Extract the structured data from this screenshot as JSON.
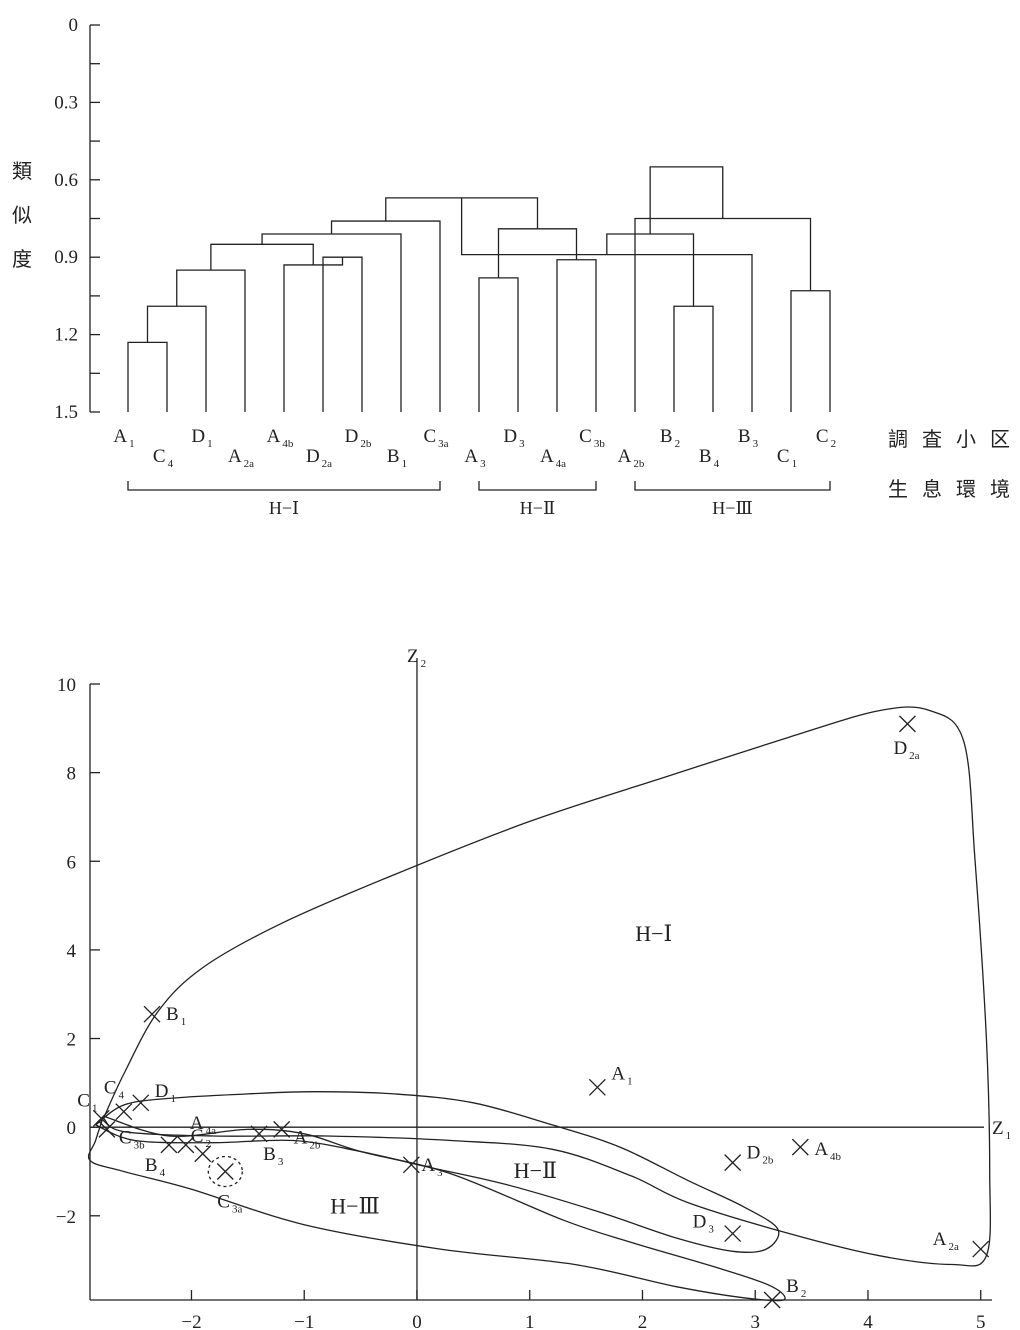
{
  "chart_data": [
    {
      "type": "dendrogram",
      "ylabel": "類似度",
      "xlabel": "調査小区",
      "group_label": "生息環境",
      "ylim": [
        0,
        1.5
      ],
      "yticks": [
        "0",
        "0.3",
        "0.6",
        "0.9",
        "1.2",
        "1.5"
      ],
      "leaves": [
        {
          "base": "A",
          "sub": "1"
        },
        {
          "base": "C",
          "sub": "4"
        },
        {
          "base": "D",
          "sub": "1"
        },
        {
          "base": "A",
          "sub": "2a"
        },
        {
          "base": "A",
          "sub": "4b"
        },
        {
          "base": "D",
          "sub": "2a"
        },
        {
          "base": "D",
          "sub": "2b"
        },
        {
          "base": "B",
          "sub": "1"
        },
        {
          "base": "C",
          "sub": "3a"
        },
        {
          "base": "A",
          "sub": "3"
        },
        {
          "base": "D",
          "sub": "3"
        },
        {
          "base": "A",
          "sub": "4a"
        },
        {
          "base": "C",
          "sub": "3b"
        },
        {
          "base": "A",
          "sub": "2b"
        },
        {
          "base": "B",
          "sub": "2"
        },
        {
          "base": "B",
          "sub": "4"
        },
        {
          "base": "B",
          "sub": "3"
        },
        {
          "base": "C",
          "sub": "1"
        },
        {
          "base": "C",
          "sub": "2"
        }
      ],
      "merges": [
        [
          0,
          1,
          1.23
        ],
        [
          19,
          2,
          1.09
        ],
        [
          20,
          3,
          0.95
        ],
        [
          5,
          6,
          0.9
        ],
        [
          4,
          22,
          0.93
        ],
        [
          21,
          23,
          0.85
        ],
        [
          24,
          7,
          0.81
        ],
        [
          25,
          8,
          0.76
        ],
        [
          9,
          10,
          0.98
        ],
        [
          11,
          12,
          0.91
        ],
        [
          27,
          28,
          0.79
        ],
        [
          26,
          29,
          0.67
        ],
        [
          14,
          15,
          1.09
        ],
        [
          30,
          16,
          0.89
        ],
        [
          17,
          18,
          1.03
        ],
        [
          31,
          32,
          0.81
        ],
        [
          13,
          33,
          0.75
        ],
        [
          34,
          35,
          0.55
        ]
      ],
      "groups": [
        {
          "label": "H−Ⅰ",
          "from": 0,
          "to": 8
        },
        {
          "label": "H−Ⅱ",
          "from": 9,
          "to": 12
        },
        {
          "label": "H−Ⅲ",
          "from": 13,
          "to": 18
        }
      ]
    },
    {
      "type": "scatter",
      "xlabel": "Z",
      "xlabel_sub": "1",
      "ylabel": "Z",
      "ylabel_sub": "2",
      "xlim": [
        -2.9,
        5.1
      ],
      "ylim": [
        -3.9,
        10
      ],
      "xticks": [
        "−2",
        "−1",
        "0",
        "1",
        "2",
        "3",
        "4",
        "5"
      ],
      "xtick_values": [
        -2,
        -1,
        0,
        1,
        2,
        3,
        4,
        5
      ],
      "yticks": [
        "−2",
        "0",
        "2",
        "4",
        "6",
        "8",
        "10"
      ],
      "ytick_values": [
        -2,
        0,
        2,
        4,
        6,
        8,
        10
      ],
      "points": [
        {
          "base": "D",
          "sub": "2a",
          "x": 4.35,
          "y": 9.1
        },
        {
          "base": "B",
          "sub": "1",
          "x": -2.35,
          "y": 2.55
        },
        {
          "base": "A",
          "sub": "1",
          "x": 1.6,
          "y": 0.9
        },
        {
          "base": "C",
          "sub": "4",
          "x": -2.6,
          "y": 0.35
        },
        {
          "base": "D",
          "sub": "1",
          "x": -2.45,
          "y": 0.55
        },
        {
          "base": "C",
          "sub": "1",
          "x": -2.8,
          "y": 0.2
        },
        {
          "base": "C",
          "sub": "3b",
          "x": -2.75,
          "y": -0.05
        },
        {
          "base": "A",
          "sub": "4a",
          "x": -2.05,
          "y": -0.4
        },
        {
          "base": "B",
          "sub": "4",
          "x": -2.2,
          "y": -0.4
        },
        {
          "base": "C",
          "sub": "2",
          "x": -1.9,
          "y": -0.6
        },
        {
          "base": "C",
          "sub": "3a",
          "x": -1.7,
          "y": -1.0
        },
        {
          "base": "B",
          "sub": "3",
          "x": -1.4,
          "y": -0.15
        },
        {
          "base": "A",
          "sub": "2b",
          "x": -1.2,
          "y": -0.05
        },
        {
          "base": "A",
          "sub": "3",
          "x": -0.05,
          "y": -0.85
        },
        {
          "base": "D",
          "sub": "2b",
          "x": 2.8,
          "y": -0.8
        },
        {
          "base": "A",
          "sub": "4b",
          "x": 3.4,
          "y": -0.45
        },
        {
          "base": "D",
          "sub": "3",
          "x": 2.8,
          "y": -2.4
        },
        {
          "base": "A",
          "sub": "2a",
          "x": 5.0,
          "y": -2.75
        },
        {
          "base": "B",
          "sub": "2",
          "x": 3.15,
          "y": -3.9
        }
      ],
      "region_labels": [
        {
          "label": "H−Ⅰ",
          "x": 2.1,
          "y": 4.2
        },
        {
          "label": "H−Ⅱ",
          "x": 1.05,
          "y": -1.15
        },
        {
          "label": "H−Ⅲ",
          "x": -0.55,
          "y": -1.95
        }
      ],
      "regions": [
        {
          "name": "H−Ⅰ",
          "path": [
            [
              -2.78,
              0.2
            ],
            [
              -2.6,
              1.2
            ],
            [
              -2.3,
              2.6
            ],
            [
              -1.9,
              3.6
            ],
            [
              -1.2,
              4.6
            ],
            [
              -0.2,
              5.7
            ],
            [
              1.0,
              6.9
            ],
            [
              2.2,
              7.9
            ],
            [
              3.3,
              8.8
            ],
            [
              4.1,
              9.4
            ],
            [
              4.55,
              9.4
            ],
            [
              4.85,
              8.7
            ],
            [
              4.95,
              6.0
            ],
            [
              5.05,
              2.0
            ],
            [
              5.08,
              -1.0
            ],
            [
              5.05,
              -2.9
            ],
            [
              4.75,
              -3.1
            ],
            [
              4.1,
              -2.9
            ],
            [
              3.3,
              -2.4
            ],
            [
              2.4,
              -1.7
            ],
            [
              1.9,
              -1.1
            ],
            [
              1.2,
              -0.5
            ],
            [
              0.3,
              -0.3
            ],
            [
              -0.8,
              -0.2
            ],
            [
              -1.8,
              -0.2
            ],
            [
              -2.6,
              -0.1
            ],
            [
              -2.78,
              0.2
            ]
          ]
        },
        {
          "name": "H−Ⅱ",
          "path": [
            [
              -2.85,
              0.05
            ],
            [
              -2.6,
              0.5
            ],
            [
              -2.2,
              0.65
            ],
            [
              -1.5,
              0.75
            ],
            [
              -0.9,
              0.8
            ],
            [
              -0.2,
              0.75
            ],
            [
              0.5,
              0.55
            ],
            [
              1.2,
              0.05
            ],
            [
              1.8,
              -0.45
            ],
            [
              2.4,
              -1.2
            ],
            [
              2.9,
              -1.8
            ],
            [
              3.2,
              -2.3
            ],
            [
              3.1,
              -2.75
            ],
            [
              2.8,
              -2.8
            ],
            [
              2.3,
              -2.5
            ],
            [
              1.6,
              -1.9
            ],
            [
              0.8,
              -1.3
            ],
            [
              0.1,
              -0.9
            ],
            [
              -0.5,
              -0.55
            ],
            [
              -1.1,
              -0.3
            ],
            [
              -1.8,
              -0.35
            ],
            [
              -2.5,
              -0.3
            ],
            [
              -2.85,
              0.05
            ]
          ]
        },
        {
          "name": "H−Ⅲ",
          "path": [
            [
              -2.78,
              0.25
            ],
            [
              -2.85,
              -0.3
            ],
            [
              -2.9,
              -0.75
            ],
            [
              -2.6,
              -1.0
            ],
            [
              -2.0,
              -1.4
            ],
            [
              -1.0,
              -2.2
            ],
            [
              0.2,
              -2.75
            ],
            [
              1.4,
              -3.1
            ],
            [
              2.3,
              -3.6
            ],
            [
              2.9,
              -3.85
            ],
            [
              3.25,
              -3.9
            ],
            [
              3.15,
              -3.6
            ],
            [
              2.7,
              -3.2
            ],
            [
              1.9,
              -2.6
            ],
            [
              1.3,
              -2.1
            ],
            [
              0.3,
              -1.05
            ],
            [
              -0.5,
              -0.55
            ],
            [
              -1.0,
              -0.15
            ],
            [
              -1.5,
              -0.05
            ],
            [
              -2.2,
              -0.2
            ],
            [
              -2.78,
              0.25
            ]
          ]
        }
      ],
      "highlighted": {
        "base": "C",
        "sub": "3a"
      }
    }
  ]
}
